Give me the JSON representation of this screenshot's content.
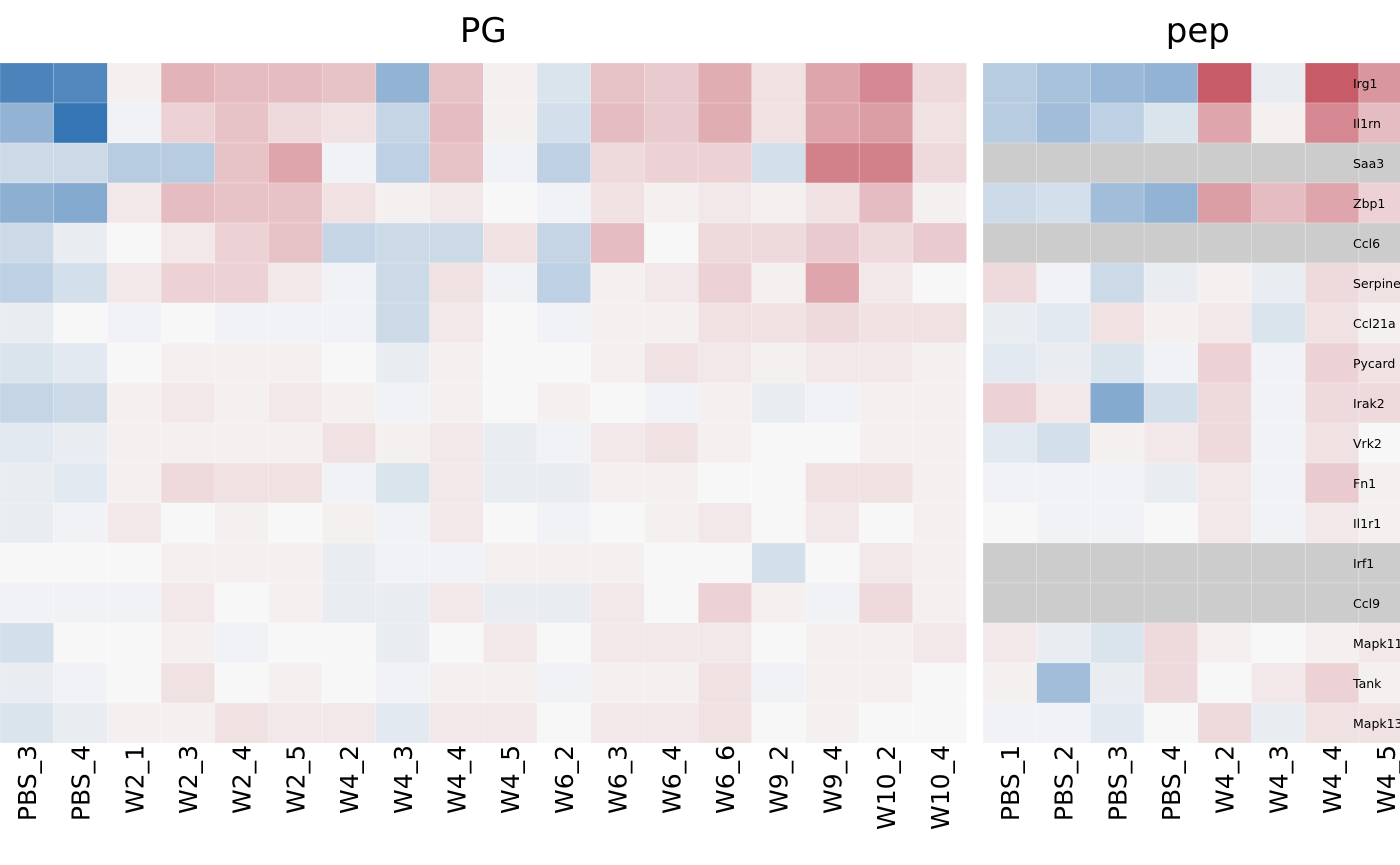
{
  "chart_data": {
    "type": "heatmap",
    "rows": [
      "Irg1",
      "Il1rn",
      "Saa3",
      "Zbp1",
      "Ccl6",
      "Serpine",
      "Ccl21a",
      "Pycard",
      "Irak2",
      "Vrk2",
      "Fn1",
      "Il1r1",
      "Irf1",
      "Ccl9",
      "Mapk11",
      "Tank",
      "Mapk13"
    ],
    "color_scale": {
      "low": "#2166ac",
      "mid": "#f7f7f7",
      "high": "#b2182b",
      "missing": "#cccccc",
      "range": [
        -3,
        3
      ]
    },
    "panels": [
      {
        "title": "PG",
        "columns": [
          "PBS_3",
          "PBS_4",
          "W2_1",
          "W2_3",
          "W2_4",
          "W2_5",
          "W4_2",
          "W4_3",
          "W4_4",
          "W4_5",
          "W6_2",
          "W6_3",
          "W6_4",
          "W6_6",
          "W9_2",
          "W9_4",
          "W10_2",
          "W10_4"
        ],
        "values": [
          [
            -2.4,
            -2.3,
            0.1,
            0.9,
            0.8,
            0.8,
            0.7,
            -1.4,
            0.7,
            0.1,
            -0.4,
            0.7,
            0.6,
            1.0,
            0.3,
            1.1,
            1.5,
            0.4
          ],
          [
            -1.4,
            -2.7,
            -0.1,
            0.5,
            0.7,
            0.4,
            0.3,
            -0.7,
            0.8,
            0.1,
            -0.5,
            0.8,
            0.6,
            1.0,
            0.3,
            1.1,
            1.2,
            0.3
          ],
          [
            -0.6,
            -0.6,
            -0.9,
            -0.9,
            0.7,
            1.1,
            -0.1,
            -0.8,
            0.7,
            -0.1,
            -0.8,
            0.4,
            0.5,
            0.5,
            -0.5,
            1.6,
            1.6,
            0.4
          ],
          [
            -1.5,
            -1.6,
            0.2,
            0.8,
            0.7,
            0.7,
            0.3,
            0.1,
            0.2,
            0.0,
            -0.1,
            0.3,
            0.1,
            0.2,
            0.1,
            0.3,
            0.8,
            0.1
          ],
          [
            -0.6,
            -0.2,
            0.0,
            0.2,
            0.5,
            0.7,
            -0.7,
            -0.6,
            -0.6,
            0.3,
            -0.7,
            0.8,
            0.0,
            0.4,
            0.4,
            0.6,
            0.4,
            0.6
          ],
          [
            -0.8,
            -0.5,
            0.2,
            0.5,
            0.5,
            0.2,
            -0.1,
            -0.6,
            0.3,
            -0.1,
            -0.8,
            0.1,
            0.2,
            0.5,
            0.1,
            1.1,
            0.2,
            0.0
          ],
          [
            -0.2,
            0.0,
            -0.1,
            0.0,
            -0.1,
            -0.1,
            -0.1,
            -0.6,
            0.2,
            0.0,
            -0.1,
            0.1,
            0.1,
            0.3,
            0.3,
            0.4,
            0.3,
            0.3
          ],
          [
            -0.4,
            -0.3,
            0.0,
            0.1,
            0.1,
            0.1,
            0.0,
            -0.2,
            0.1,
            0.0,
            0.0,
            0.1,
            0.3,
            0.2,
            0.1,
            0.2,
            0.2,
            0.1
          ],
          [
            -0.7,
            -0.6,
            0.1,
            0.2,
            0.1,
            0.2,
            0.1,
            -0.1,
            0.1,
            0.0,
            0.1,
            0.0,
            -0.1,
            0.1,
            -0.2,
            -0.1,
            0.1,
            0.1
          ],
          [
            -0.3,
            -0.2,
            0.1,
            0.1,
            0.1,
            0.1,
            0.3,
            0.1,
            0.2,
            -0.2,
            -0.1,
            0.2,
            0.3,
            0.1,
            0.0,
            0.0,
            0.1,
            0.1
          ],
          [
            -0.2,
            -0.3,
            0.1,
            0.4,
            0.3,
            0.3,
            -0.1,
            -0.4,
            0.2,
            -0.2,
            -0.2,
            0.1,
            0.1,
            0.0,
            0.0,
            0.3,
            0.3,
            0.1
          ],
          [
            -0.2,
            -0.1,
            0.2,
            0.0,
            0.1,
            0.0,
            0.1,
            -0.1,
            0.2,
            0.0,
            -0.1,
            0.0,
            0.1,
            0.2,
            0.0,
            0.2,
            0.0,
            0.1
          ],
          [
            0.0,
            0.0,
            0.0,
            0.1,
            0.1,
            0.1,
            -0.2,
            -0.1,
            -0.1,
            0.1,
            0.1,
            0.1,
            0.0,
            0.0,
            -0.5,
            0.0,
            0.2,
            0.1
          ],
          [
            -0.1,
            -0.1,
            -0.1,
            0.2,
            0.0,
            0.1,
            -0.2,
            -0.2,
            0.2,
            -0.2,
            -0.2,
            0.2,
            0.0,
            0.5,
            0.1,
            -0.1,
            0.4,
            0.1
          ],
          [
            -0.5,
            0.0,
            0.0,
            0.1,
            -0.1,
            0.0,
            0.0,
            -0.2,
            0.0,
            0.2,
            0.0,
            0.2,
            0.2,
            0.2,
            0.0,
            0.1,
            0.1,
            0.2
          ],
          [
            -0.2,
            -0.1,
            0.0,
            0.3,
            0.0,
            0.1,
            0.0,
            -0.1,
            0.1,
            0.1,
            -0.1,
            0.1,
            0.1,
            0.3,
            -0.1,
            0.1,
            0.1,
            0.0
          ],
          [
            -0.4,
            -0.2,
            0.1,
            0.1,
            0.3,
            0.2,
            0.2,
            -0.3,
            0.2,
            0.2,
            0.0,
            0.2,
            0.2,
            0.3,
            0.0,
            0.1,
            0.0,
            0.0
          ]
        ]
      },
      {
        "title": "pep",
        "columns": [
          "PBS_1",
          "PBS_2",
          "PBS_3",
          "PBS_4",
          "W4_2",
          "W4_3",
          "W4_4",
          "W4_5"
        ],
        "values": [
          [
            -0.9,
            -1.1,
            -1.3,
            -1.4,
            2.1,
            -0.2,
            2.1,
            1.3
          ],
          [
            -0.9,
            -1.2,
            -0.8,
            -0.4,
            1.1,
            0.1,
            1.5,
            0.8
          ],
          [
            null,
            null,
            null,
            null,
            null,
            null,
            null,
            null
          ],
          [
            -0.6,
            -0.5,
            -1.2,
            -1.4,
            1.2,
            0.8,
            1.1,
            0.5
          ],
          [
            null,
            null,
            null,
            null,
            null,
            null,
            null,
            null
          ],
          [
            0.4,
            -0.1,
            -0.6,
            -0.2,
            0.1,
            -0.2,
            0.4,
            0.3
          ],
          [
            -0.2,
            -0.3,
            0.3,
            0.1,
            0.2,
            -0.4,
            0.3,
            0.1
          ],
          [
            -0.3,
            -0.2,
            -0.4,
            -0.1,
            0.5,
            -0.1,
            0.5,
            0.3
          ],
          [
            0.5,
            0.2,
            -1.6,
            -0.5,
            0.4,
            -0.1,
            0.4,
            0.4
          ],
          [
            -0.3,
            -0.5,
            0.1,
            0.2,
            0.4,
            -0.1,
            0.3,
            0.0
          ],
          [
            -0.1,
            -0.1,
            -0.1,
            -0.2,
            0.2,
            -0.1,
            0.6,
            0.1
          ],
          [
            0.0,
            -0.1,
            -0.1,
            0.0,
            0.2,
            -0.1,
            0.2,
            0.1
          ],
          [
            null,
            null,
            null,
            null,
            null,
            null,
            null,
            null
          ],
          [
            null,
            null,
            null,
            null,
            null,
            null,
            null,
            null
          ],
          [
            0.2,
            -0.2,
            -0.4,
            0.4,
            0.1,
            0.0,
            0.1,
            0.2
          ],
          [
            0.1,
            -1.2,
            -0.2,
            0.4,
            0.0,
            0.2,
            0.5,
            0.1
          ],
          [
            -0.1,
            -0.1,
            -0.3,
            0.0,
            0.4,
            -0.2,
            0.3,
            0.3
          ]
        ]
      }
    ]
  }
}
